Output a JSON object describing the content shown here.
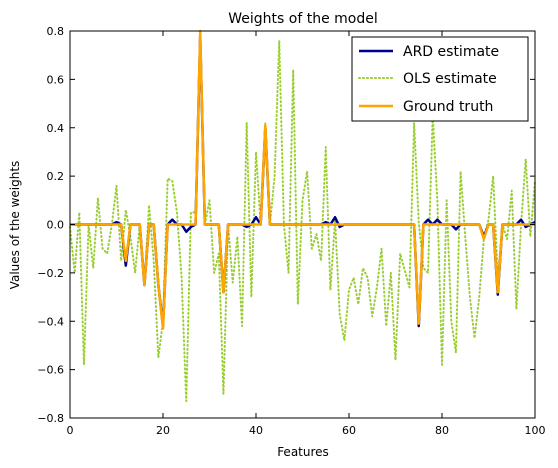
{
  "chart_data": {
    "type": "line",
    "title": "Weights of the model",
    "xlabel": "Features",
    "ylabel": "Values of the weights",
    "xlim": [
      0,
      100
    ],
    "ylim": [
      -0.8,
      0.8
    ],
    "xticks": [
      0,
      20,
      40,
      60,
      80,
      100
    ],
    "xtick_labels": [
      "0",
      "20",
      "40",
      "60",
      "80",
      "100"
    ],
    "yticks": [
      -0.8,
      -0.6,
      -0.4,
      -0.2,
      0.0,
      0.2,
      0.4,
      0.6,
      0.8
    ],
    "ytick_labels": [
      "−0.8",
      "−0.6",
      "−0.4",
      "−0.2",
      "0.0",
      "0.2",
      "0.4",
      "0.6",
      "0.8"
    ],
    "grid": false,
    "legend_position": "top-right",
    "series": [
      {
        "name": "ARD estimate",
        "color": "#00008b",
        "style": "solid",
        "y": [
          0.0,
          0.0,
          0.0,
          0.0,
          0.0,
          0.0,
          0.0,
          0.0,
          0.0,
          0.0,
          0.01,
          0.0,
          -0.17,
          0.0,
          0.0,
          0.0,
          -0.25,
          0.0,
          0.0,
          -0.25,
          -0.42,
          0.0,
          0.02,
          0.0,
          0.0,
          -0.03,
          -0.01,
          0.0,
          0.78,
          0.0,
          0.0,
          0.0,
          0.0,
          -0.28,
          0.0,
          0.0,
          0.0,
          0.0,
          -0.01,
          0.0,
          0.03,
          0.0,
          0.4,
          0.0,
          0.0,
          0.0,
          0.0,
          0.0,
          0.0,
          0.0,
          0.0,
          0.0,
          0.0,
          0.0,
          0.0,
          0.01,
          0.0,
          0.03,
          -0.01,
          0.0,
          0.0,
          0.0,
          0.0,
          0.0,
          0.0,
          0.0,
          0.0,
          0.0,
          0.0,
          0.0,
          0.0,
          0.0,
          0.0,
          0.0,
          0.0,
          -0.42,
          0.0,
          0.02,
          0.0,
          0.02,
          0.0,
          0.0,
          0.0,
          -0.02,
          0.0,
          0.0,
          0.0,
          0.0,
          0.0,
          -0.05,
          0.0,
          0.0,
          -0.29,
          0.0,
          0.0,
          0.0,
          0.0,
          0.02,
          -0.01,
          0.0,
          0.01
        ]
      },
      {
        "name": "OLS estimate",
        "color": "#9acd32",
        "style": "dotted",
        "y": [
          -0.01,
          -0.2,
          0.05,
          -0.58,
          0.0,
          -0.18,
          0.11,
          -0.1,
          -0.12,
          0.0,
          0.16,
          -0.15,
          0.06,
          -0.05,
          -0.2,
          0.0,
          -0.25,
          0.08,
          -0.15,
          -0.55,
          -0.4,
          0.19,
          0.18,
          0.05,
          -0.22,
          -0.73,
          0.05,
          0.05,
          0.78,
          0.0,
          0.1,
          -0.2,
          -0.12,
          -0.7,
          0.0,
          -0.24,
          -0.05,
          -0.42,
          0.42,
          -0.3,
          0.3,
          0.0,
          0.42,
          0.0,
          0.2,
          0.76,
          0.0,
          -0.2,
          0.64,
          -0.33,
          0.1,
          0.22,
          -0.1,
          -0.04,
          -0.15,
          0.32,
          -0.27,
          0.02,
          -0.37,
          -0.48,
          -0.27,
          -0.22,
          -0.33,
          -0.18,
          -0.22,
          -0.38,
          -0.26,
          -0.1,
          -0.42,
          -0.2,
          -0.56,
          -0.12,
          -0.19,
          -0.26,
          0.42,
          0.01,
          -0.18,
          -0.2,
          0.45,
          0.1,
          -0.58,
          0.1,
          -0.4,
          -0.53,
          0.22,
          -0.05,
          -0.3,
          -0.47,
          -0.3,
          -0.06,
          0.02,
          0.2,
          -0.22,
          0.0,
          -0.06,
          0.14,
          -0.35,
          0.0,
          0.27,
          -0.05,
          0.18
        ]
      },
      {
        "name": "Ground truth",
        "color": "#ffa500",
        "style": "solid",
        "y": [
          0.0,
          0.0,
          0.0,
          0.0,
          0.0,
          0.0,
          0.0,
          0.0,
          0.0,
          0.0,
          0.0,
          0.0,
          -0.15,
          0.0,
          0.0,
          0.0,
          -0.25,
          0.0,
          0.0,
          -0.25,
          -0.43,
          0.0,
          0.0,
          0.0,
          0.0,
          0.0,
          0.0,
          0.0,
          0.8,
          0.0,
          0.0,
          0.0,
          0.0,
          -0.28,
          0.0,
          0.0,
          0.0,
          0.0,
          0.0,
          0.0,
          0.0,
          0.0,
          0.41,
          0.0,
          0.0,
          0.0,
          0.0,
          0.0,
          0.0,
          0.0,
          0.0,
          0.0,
          0.0,
          0.0,
          0.0,
          0.0,
          0.0,
          0.0,
          0.0,
          0.0,
          0.0,
          0.0,
          0.0,
          0.0,
          0.0,
          0.0,
          0.0,
          0.0,
          0.0,
          0.0,
          0.0,
          0.0,
          0.0,
          0.0,
          0.0,
          -0.41,
          0.0,
          0.0,
          0.0,
          0.0,
          0.0,
          0.0,
          0.0,
          0.0,
          0.0,
          0.0,
          0.0,
          0.0,
          0.0,
          -0.06,
          0.0,
          0.0,
          -0.28,
          0.0,
          0.0,
          0.0,
          0.0,
          0.0,
          0.0,
          0.0,
          0.0
        ]
      }
    ]
  }
}
